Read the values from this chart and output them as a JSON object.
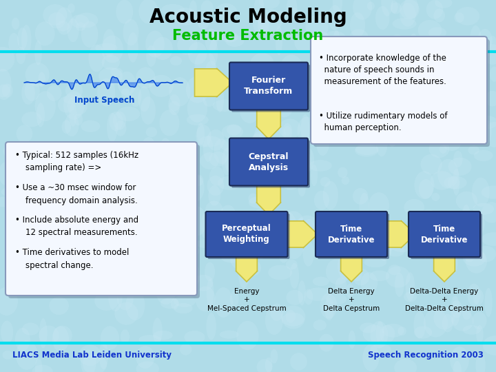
{
  "title": "Acoustic Modeling",
  "subtitle": "Feature Extraction",
  "bg_color": "#b0dce8",
  "title_color": "#000000",
  "subtitle_color": "#00bb00",
  "box_blue_bg": "#3355aa",
  "box_blue_text": "#ffffff",
  "box_white_bg": "#f0f6ff",
  "box_white_border": "#8899bb",
  "arrow_fill": "#f0e878",
  "arrow_edge": "#c8c040",
  "footer_left": "LIACS Media Lab Leiden University",
  "footer_right": "Speech Recognition 2003",
  "footer_color": "#1133cc",
  "input_speech_label": "Input Speech"
}
